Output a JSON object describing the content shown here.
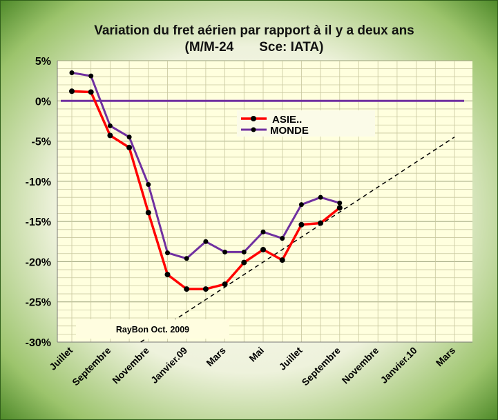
{
  "chart_data": {
    "type": "line",
    "title_line1": "Variation du fret aérien  par rapport à il y a deux ans",
    "title_line2": "(M/M-24       Sce: IATA)",
    "credit": "RayBon Oct. 2009",
    "ylim": [
      -30,
      5
    ],
    "y_ticks": [
      "5%",
      "0%",
      "-5%",
      "-10%",
      "-15%",
      "-20%",
      "-25%",
      "-30%"
    ],
    "y_tick_values": [
      5,
      0,
      -5,
      -10,
      -15,
      -20,
      -25,
      -30
    ],
    "x_tick_labels": [
      "Juillet",
      "Septembre",
      "Novembre",
      "Janvier.09",
      "Mars",
      "Mai",
      "Juillet",
      "Septembre",
      "Novembre",
      "Janvier.10",
      "Mars"
    ],
    "x_tick_positions": [
      0,
      2,
      4,
      6,
      8,
      10,
      12,
      14,
      16,
      18,
      20
    ],
    "months_total": 21,
    "legend_placement": "top-right inside plot",
    "grid": true,
    "series": [
      {
        "name": "ASIE..",
        "color": "#ff0000",
        "values": [
          1.2,
          1.1,
          -4.3,
          -5.8,
          -13.9,
          -21.6,
          -23.4,
          -23.4,
          -22.8,
          -20.1,
          -18.5,
          -19.8,
          -15.4,
          -15.2,
          -13.3
        ]
      },
      {
        "name": "MONDE",
        "color": "#7030a0",
        "values": [
          3.5,
          3.1,
          -3.1,
          -4.5,
          -10.4,
          -18.9,
          -19.6,
          -17.5,
          -18.8,
          -18.8,
          -16.3,
          -17.1,
          -12.9,
          -12.0,
          -12.7
        ]
      }
    ],
    "trendline": {
      "style": "dashed",
      "color": "#000000",
      "x": [
        3.6,
        20
      ],
      "y": [
        -30,
        -4.5
      ]
    },
    "zero_line_color": "#7030a0"
  }
}
